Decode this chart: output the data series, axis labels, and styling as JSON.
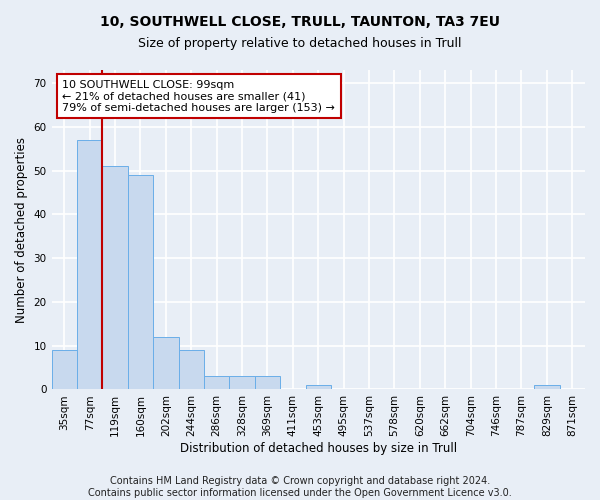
{
  "title1": "10, SOUTHWELL CLOSE, TRULL, TAUNTON, TA3 7EU",
  "title2": "Size of property relative to detached houses in Trull",
  "xlabel": "Distribution of detached houses by size in Trull",
  "ylabel": "Number of detached properties",
  "categories": [
    "35sqm",
    "77sqm",
    "119sqm",
    "160sqm",
    "202sqm",
    "244sqm",
    "286sqm",
    "328sqm",
    "369sqm",
    "411sqm",
    "453sqm",
    "495sqm",
    "537sqm",
    "578sqm",
    "620sqm",
    "662sqm",
    "704sqm",
    "746sqm",
    "787sqm",
    "829sqm",
    "871sqm"
  ],
  "values": [
    9,
    57,
    51,
    49,
    12,
    9,
    3,
    3,
    3,
    0,
    1,
    0,
    0,
    0,
    0,
    0,
    0,
    0,
    0,
    1,
    0
  ],
  "bar_color": "#c8d9ee",
  "bar_edge_color": "#6aaee8",
  "vline_x_idx": 1.5,
  "vline_color": "#c00000",
  "annotation_text": "10 SOUTHWELL CLOSE: 99sqm\n← 21% of detached houses are smaller (41)\n79% of semi-detached houses are larger (153) →",
  "annotation_box_facecolor": "#ffffff",
  "annotation_box_edgecolor": "#c00000",
  "ylim": [
    0,
    73
  ],
  "yticks": [
    0,
    10,
    20,
    30,
    40,
    50,
    60,
    70
  ],
  "footer": "Contains HM Land Registry data © Crown copyright and database right 2024.\nContains public sector information licensed under the Open Government Licence v3.0.",
  "bg_color": "#e8eef6",
  "plot_bg_color": "#e8eef6",
  "grid_color": "#ffffff",
  "title1_fontsize": 10,
  "title2_fontsize": 9,
  "xlabel_fontsize": 8.5,
  "ylabel_fontsize": 8.5,
  "annotation_fontsize": 8,
  "footer_fontsize": 7,
  "tick_fontsize": 7.5
}
